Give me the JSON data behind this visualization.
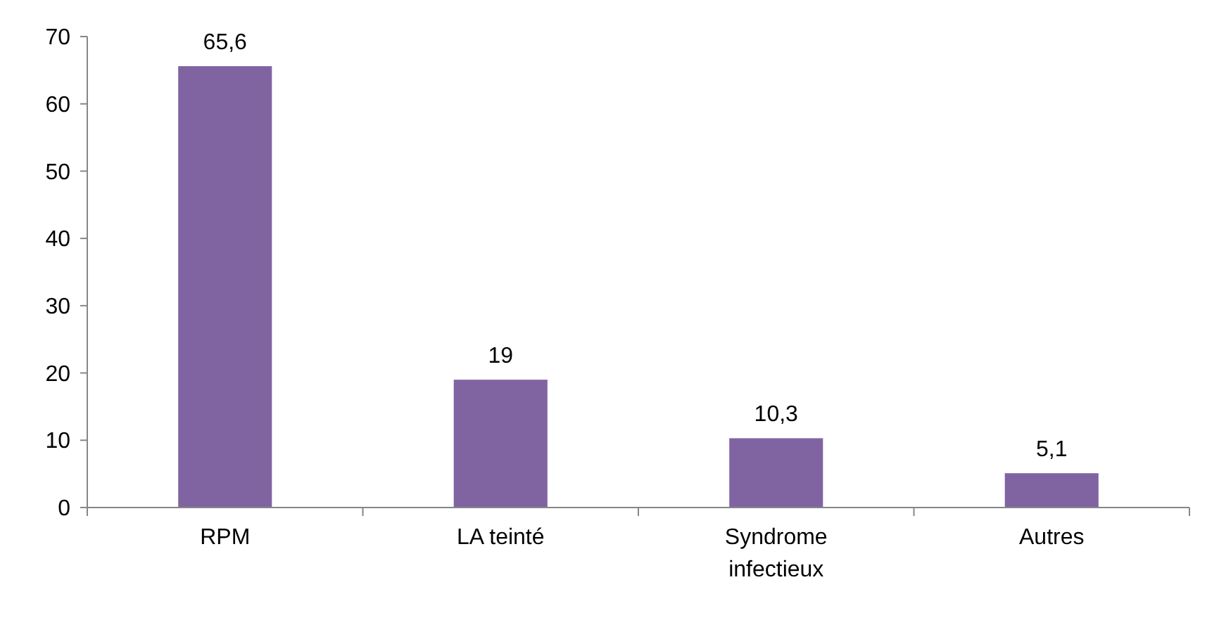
{
  "chart_data": {
    "type": "bar",
    "categories": [
      "RPM",
      "LA teinté",
      "Syndrome infectieux",
      "Autres"
    ],
    "values": [
      65.6,
      19,
      10.3,
      5.1
    ],
    "value_labels": [
      "65,6",
      "19",
      "10,3",
      "5,1"
    ],
    "color": "#8064a2",
    "ylim": [
      0,
      70
    ],
    "yticks": [
      0,
      10,
      20,
      30,
      40,
      50,
      60,
      70
    ],
    "grid": false
  }
}
